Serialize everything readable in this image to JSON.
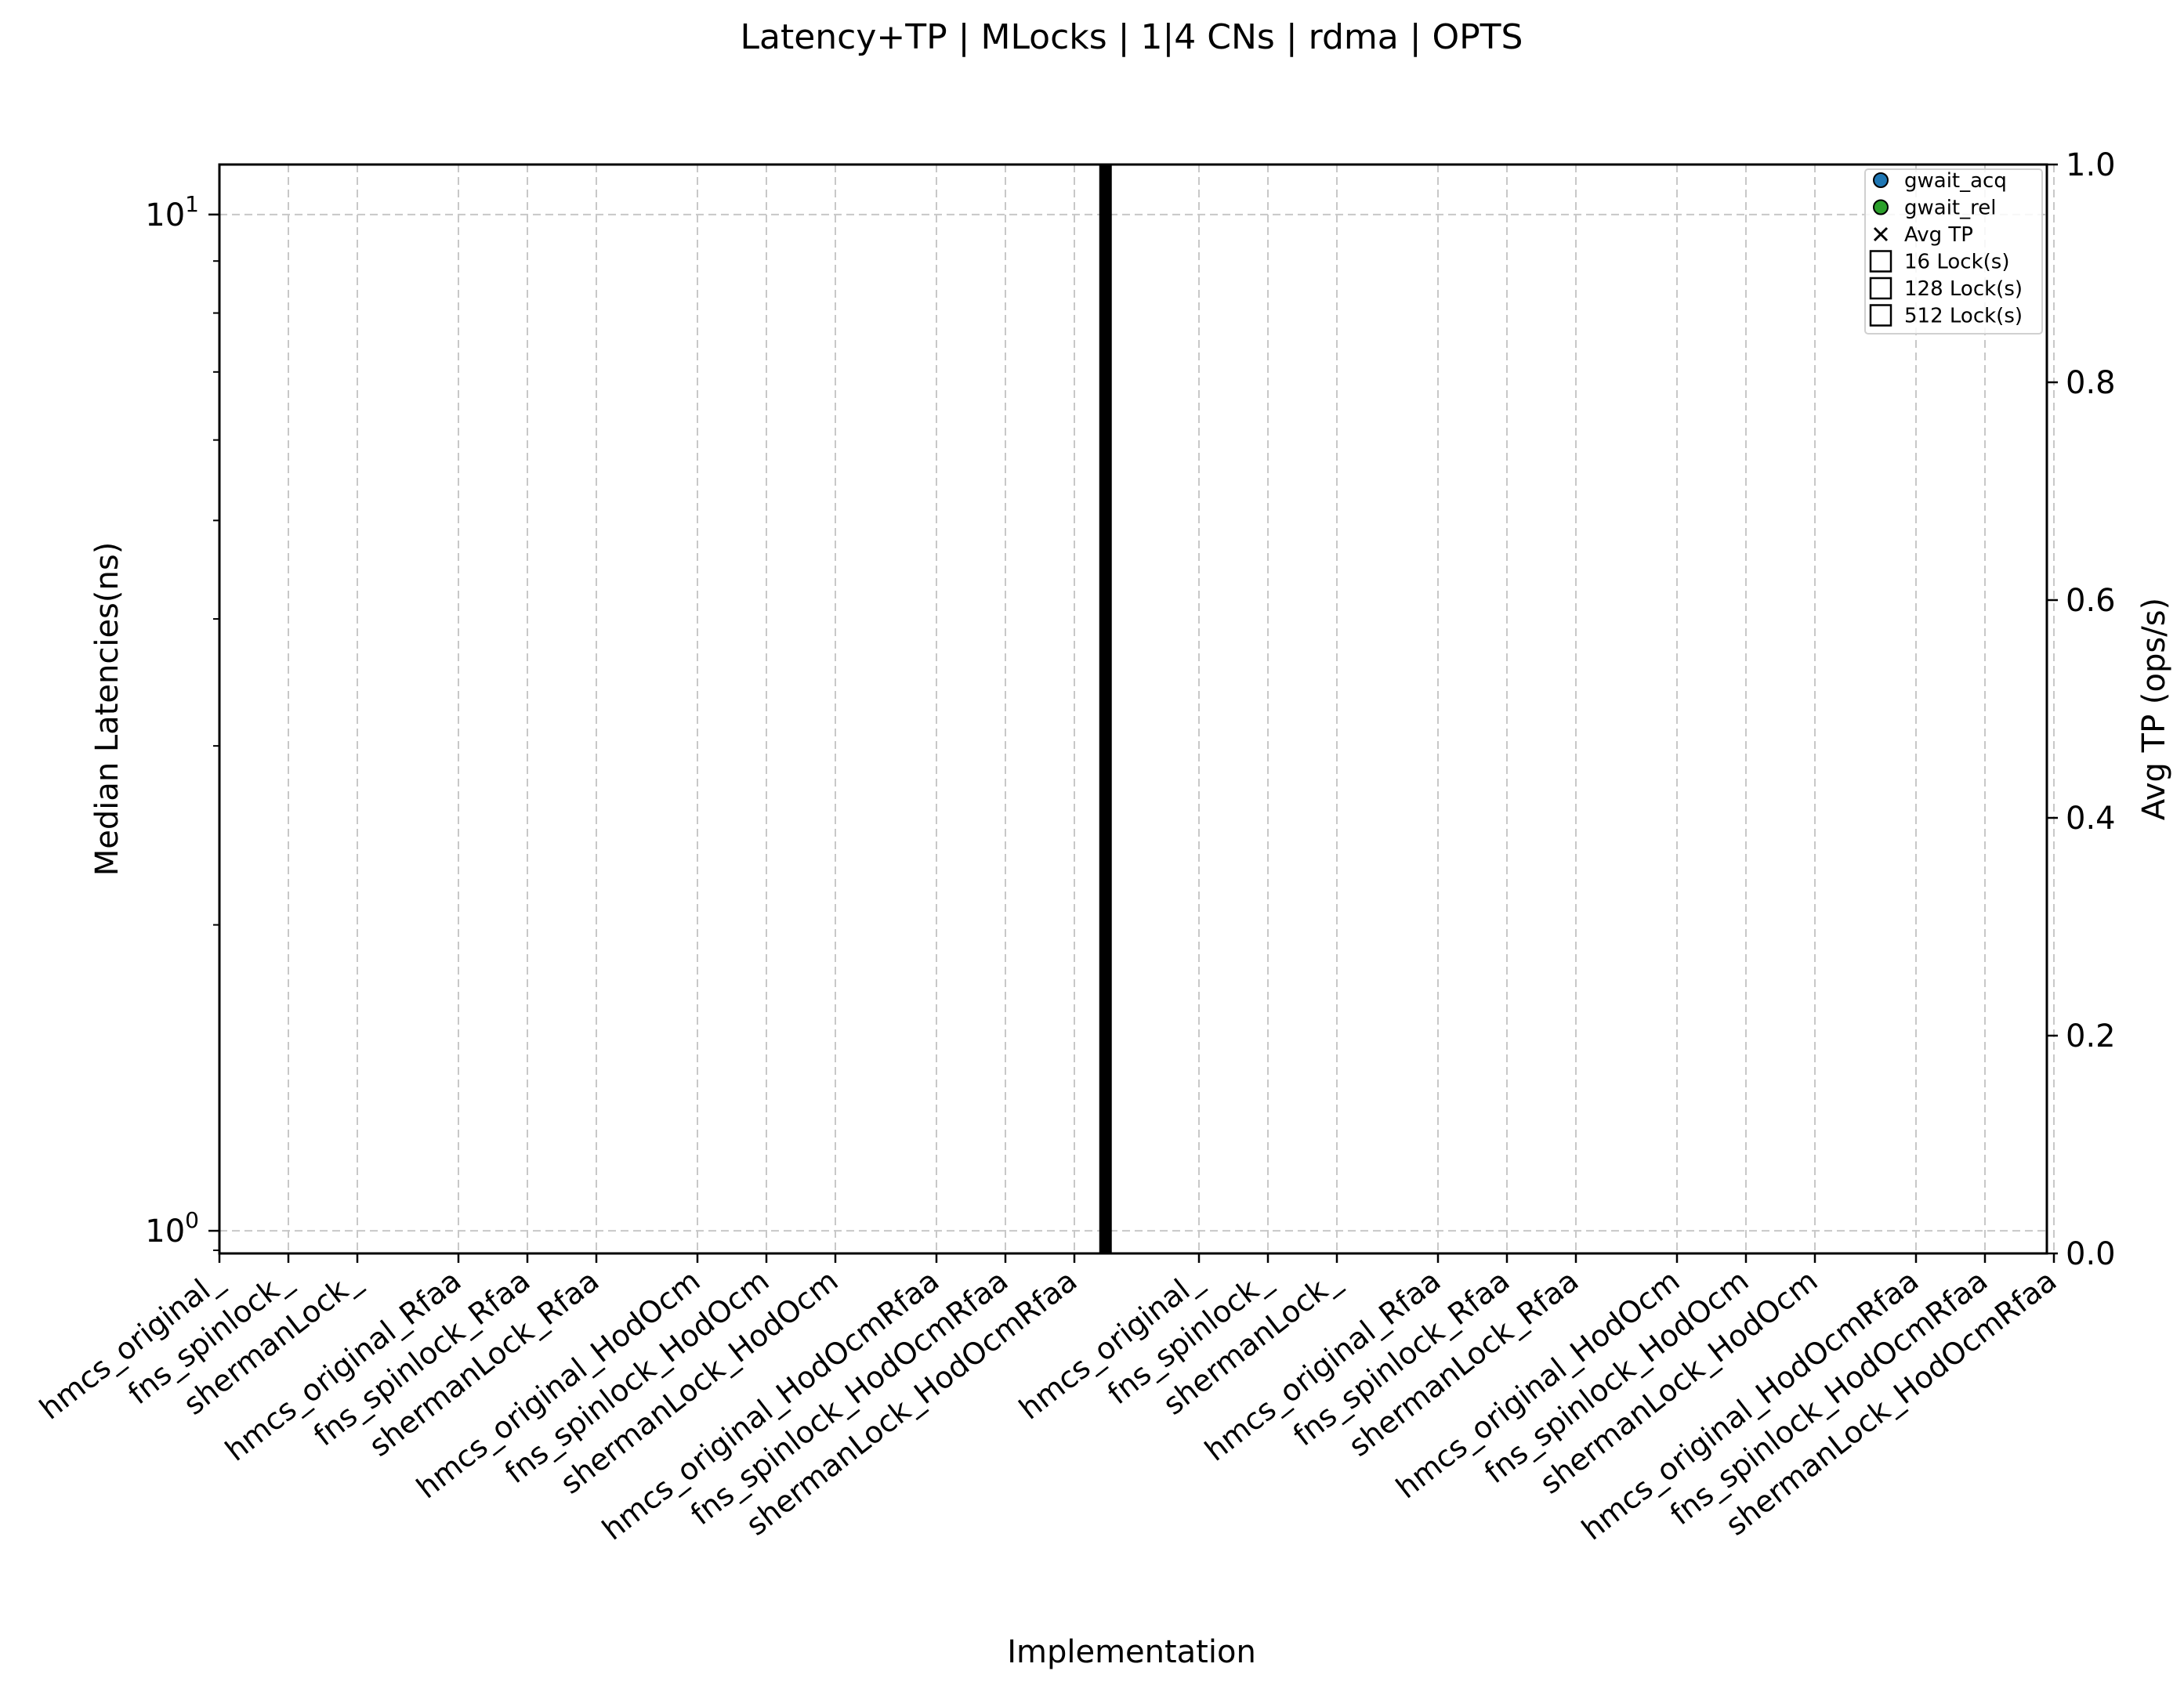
{
  "chart_data": {
    "type": "scatter",
    "title": "Latency+TP | MLocks | 1|4 CNs | rdma | OPTS",
    "xlabel": "Implementation",
    "ylabel_left": "Median Latencies(ns)",
    "ylabel_right": "Avg TP (ops/s)",
    "left_yscale": "log",
    "left_yticks": [
      {
        "value": 1,
        "base": "10",
        "exp": "0"
      },
      {
        "value": 10,
        "base": "10",
        "exp": "1"
      }
    ],
    "left_ylim": [
      0.95,
      11.2
    ],
    "right_ylim": [
      0,
      1
    ],
    "right_yticks": [
      "0.0",
      "0.2",
      "0.4",
      "0.6",
      "0.8",
      "1.0"
    ],
    "grid": true,
    "legend_position": "top-right",
    "legend": [
      {
        "label": "gwait_acq",
        "marker": "circle",
        "color": "#1f77b4"
      },
      {
        "label": "gwait_rel",
        "marker": "circle",
        "color": "#2ca02c"
      },
      {
        "label": "Avg TP",
        "marker": "x",
        "color": "#000000"
      },
      {
        "label": "16 Lock(s)",
        "marker": "square",
        "color": "#ffffff"
      },
      {
        "label": "128 Lock(s)",
        "marker": "square",
        "color": "#ffffff"
      },
      {
        "label": "512 Lock(s)",
        "marker": "square",
        "color": "#ffffff"
      }
    ],
    "groups": [
      {
        "categories": [
          "hmcs_original_",
          "fns_spinlock_",
          "shermanLock_",
          "hmcs_original_Rfaa",
          "fns_spinlock_Rfaa",
          "shermanLock_Rfaa",
          "hmcs_original_HodOcm",
          "fns_spinlock_HodOcm",
          "shermanLock_HodOcm",
          "hmcs_original_HodOcmRfaa",
          "fns_spinlock_HodOcmRfaa",
          "shermanLock_HodOcmRfaa"
        ]
      },
      {
        "categories": [
          "hmcs_original_",
          "fns_spinlock_",
          "shermanLock_",
          "hmcs_original_Rfaa",
          "fns_spinlock_Rfaa",
          "shermanLock_Rfaa",
          "hmcs_original_HodOcm",
          "fns_spinlock_HodOcm",
          "shermanLock_HodOcm",
          "hmcs_original_HodOcmRfaa",
          "fns_spinlock_HodOcmRfaa",
          "shermanLock_HodOcmRfaa"
        ]
      }
    ],
    "series": [],
    "separator": "thick vertical line between the two groups"
  }
}
